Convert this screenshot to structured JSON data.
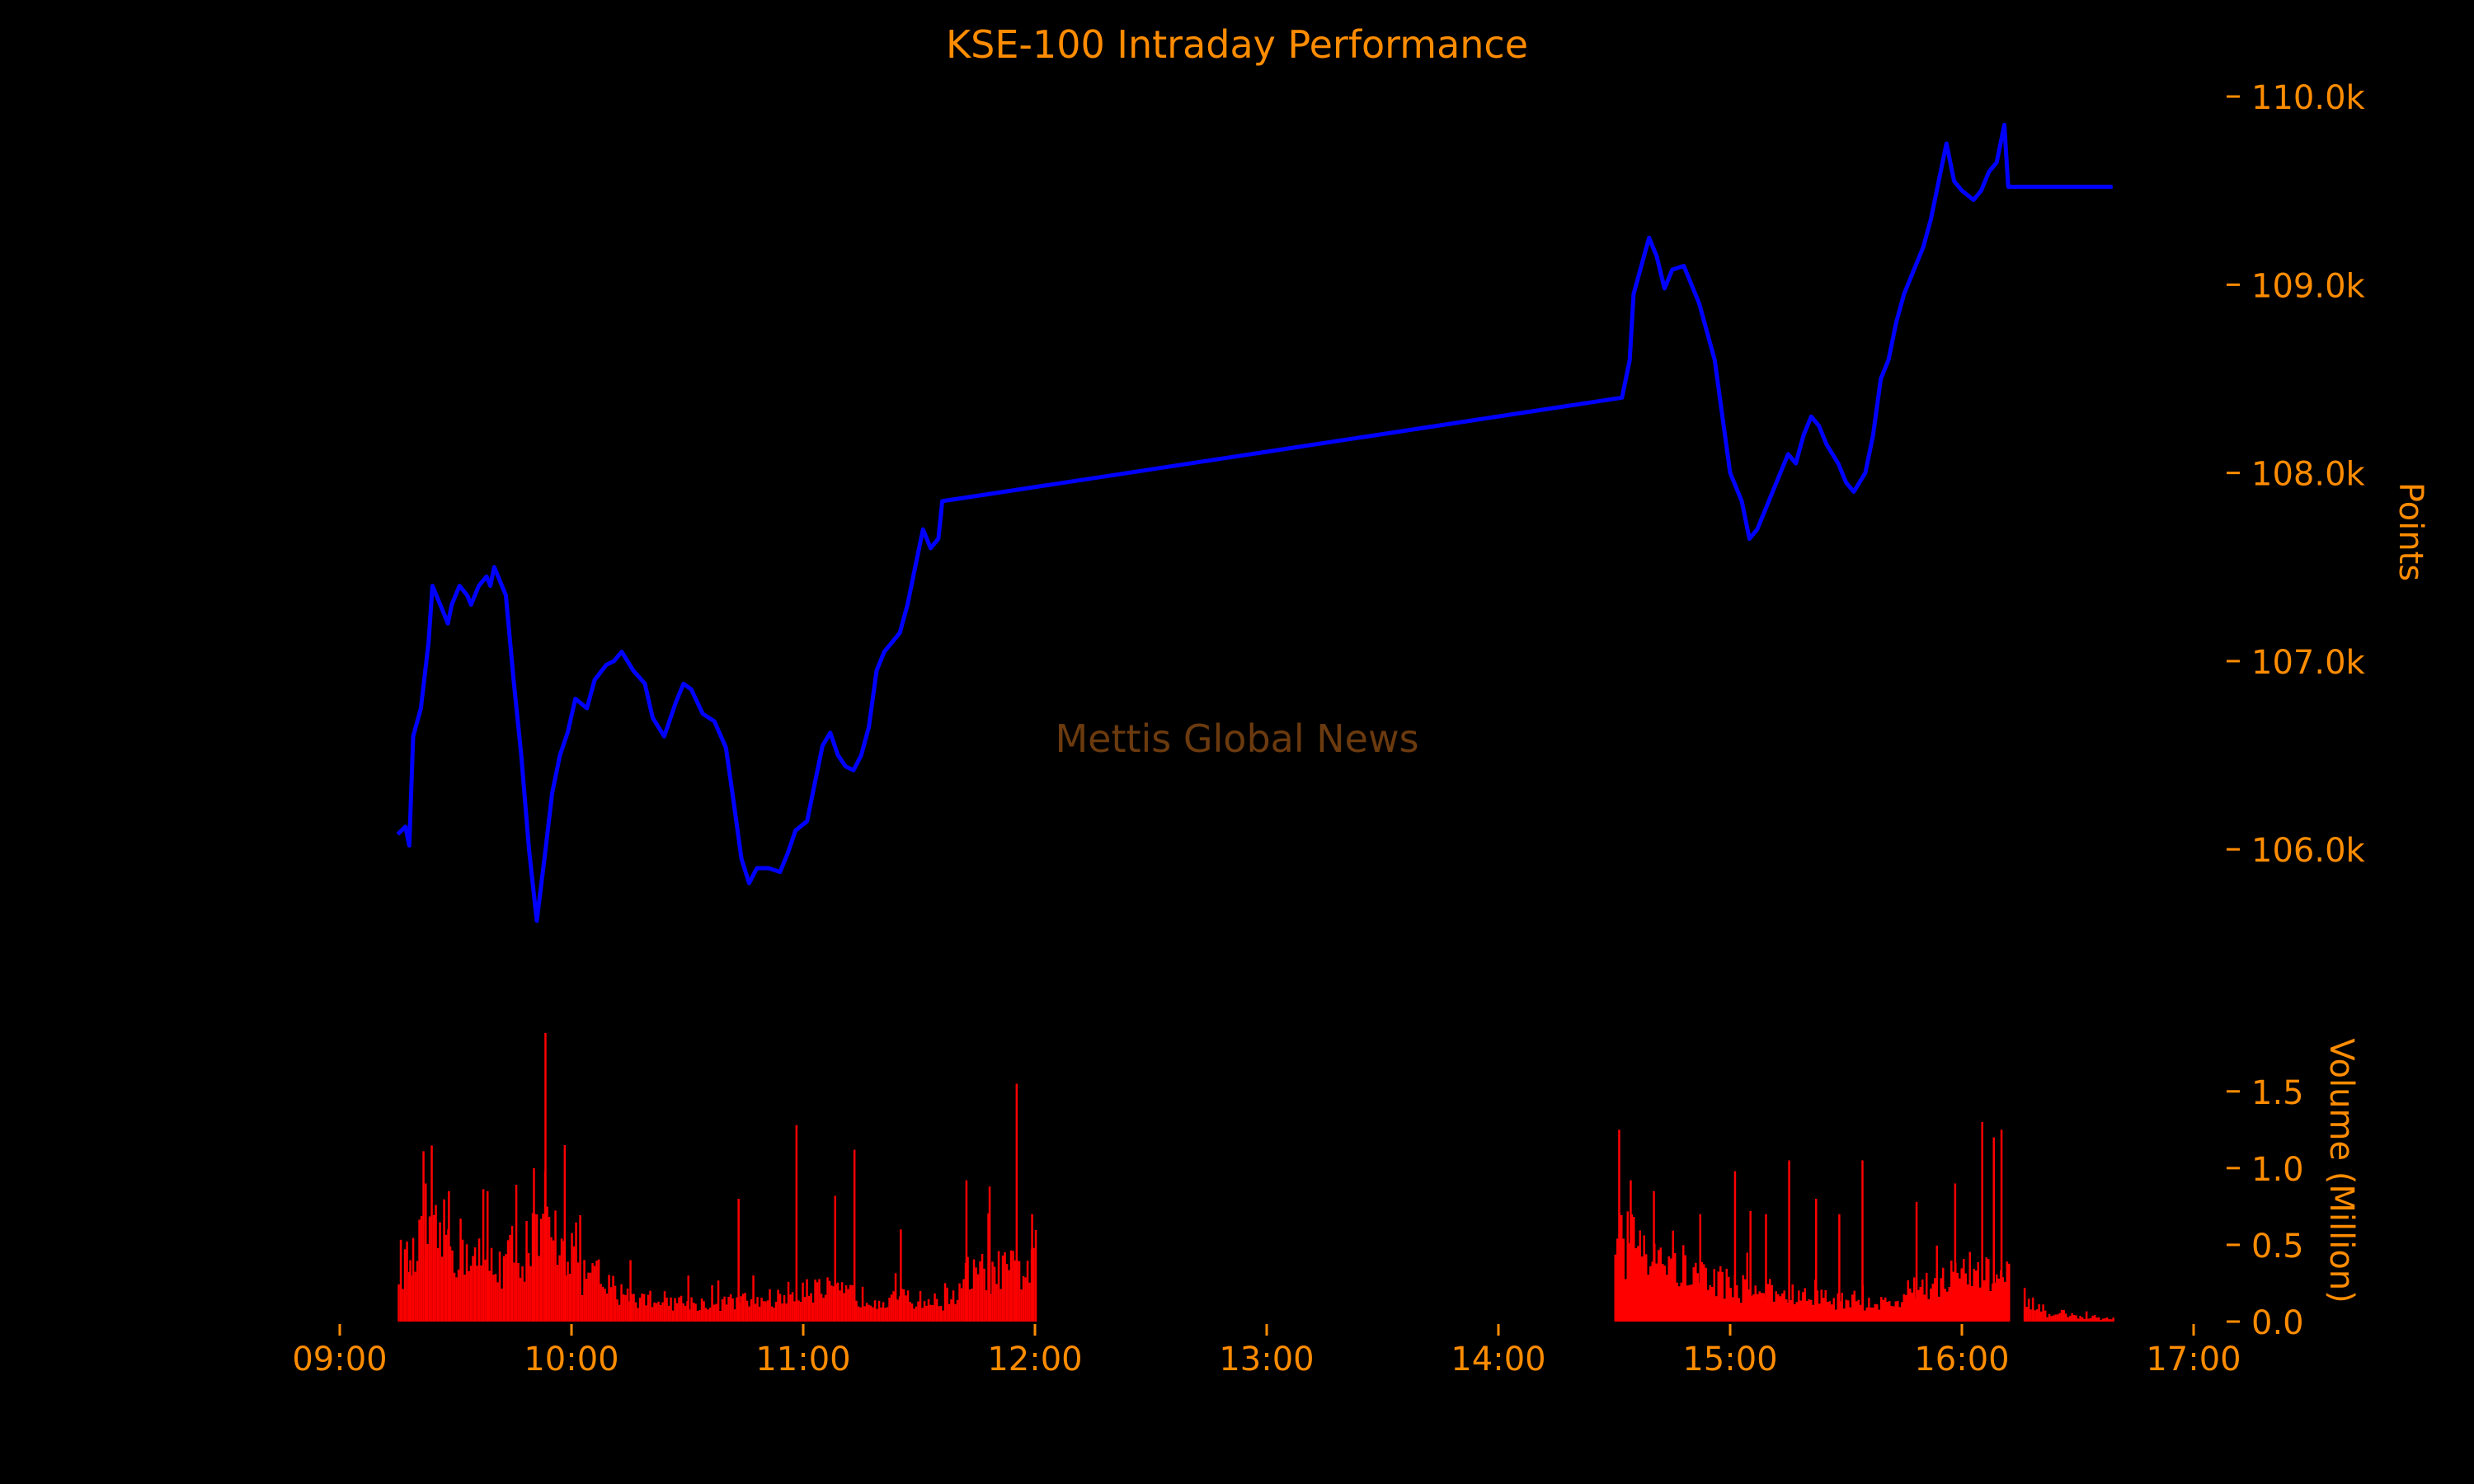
{
  "colors": {
    "background": "#000000",
    "text": "#ff8c00",
    "price_line": "#0000ff",
    "volume_bars": "#ff0000",
    "watermark": "#6b3a0e"
  },
  "chart_data": {
    "title": "KSE-100 Intraday Performance",
    "watermark": "Mettis Global News",
    "x_axis": {
      "type": "time",
      "range": [
        "09:00",
        "17:00"
      ],
      "ticks": [
        "09:00",
        "10:00",
        "11:00",
        "12:00",
        "13:00",
        "14:00",
        "15:00",
        "16:00",
        "17:00"
      ]
    },
    "price_panel": {
      "type": "line",
      "ylabel": "Points",
      "ylim": [
        105300,
        110250
      ],
      "yticks": [
        "106.0k",
        "107.0k",
        "108.0k",
        "109.0k",
        "110.0k"
      ],
      "ytick_values": [
        106000,
        107000,
        108000,
        109000,
        110000
      ],
      "axis_side": "right",
      "points": [
        [
          "09:15",
          106080
        ],
        [
          "09:17",
          106120
        ],
        [
          "09:18",
          106020
        ],
        [
          "09:19",
          106600
        ],
        [
          "09:21",
          106750
        ],
        [
          "09:23",
          107100
        ],
        [
          "09:24",
          107400
        ],
        [
          "09:25",
          107350
        ],
        [
          "09:27",
          107250
        ],
        [
          "09:28",
          107200
        ],
        [
          "09:29",
          107300
        ],
        [
          "09:31",
          107400
        ],
        [
          "09:33",
          107350
        ],
        [
          "09:34",
          107300
        ],
        [
          "09:36",
          107400
        ],
        [
          "09:38",
          107450
        ],
        [
          "09:39",
          107400
        ],
        [
          "09:40",
          107500
        ],
        [
          "09:41",
          107450
        ],
        [
          "09:43",
          107350
        ],
        [
          "09:45",
          106900
        ],
        [
          "09:47",
          106500
        ],
        [
          "09:49",
          106000
        ],
        [
          "09:51",
          105620
        ],
        [
          "09:53",
          105950
        ],
        [
          "09:55",
          106300
        ],
        [
          "09:57",
          106500
        ],
        [
          "09:59",
          106620
        ],
        [
          "10:01",
          106800
        ],
        [
          "10:04",
          106750
        ],
        [
          "10:06",
          106900
        ],
        [
          "10:09",
          106980
        ],
        [
          "10:11",
          107000
        ],
        [
          "10:13",
          107050
        ],
        [
          "10:16",
          106950
        ],
        [
          "10:19",
          106880
        ],
        [
          "10:21",
          106700
        ],
        [
          "10:24",
          106600
        ],
        [
          "10:27",
          106780
        ],
        [
          "10:29",
          106880
        ],
        [
          "10:31",
          106850
        ],
        [
          "10:34",
          106720
        ],
        [
          "10:37",
          106680
        ],
        [
          "10:40",
          106540
        ],
        [
          "10:42",
          106250
        ],
        [
          "10:44",
          105950
        ],
        [
          "10:46",
          105820
        ],
        [
          "10:48",
          105900
        ],
        [
          "10:51",
          105900
        ],
        [
          "10:54",
          105880
        ],
        [
          "10:56",
          105980
        ],
        [
          "10:58",
          106100
        ],
        [
          "11:01",
          106150
        ],
        [
          "11:03",
          106350
        ],
        [
          "11:05",
          106550
        ],
        [
          "11:07",
          106620
        ],
        [
          "11:09",
          106500
        ],
        [
          "11:11",
          106440
        ],
        [
          "11:13",
          106420
        ],
        [
          "11:15",
          106500
        ],
        [
          "11:17",
          106650
        ],
        [
          "11:19",
          106950
        ],
        [
          "11:21",
          107050
        ],
        [
          "11:23",
          107100
        ],
        [
          "11:25",
          107150
        ],
        [
          "11:27",
          107300
        ],
        [
          "11:29",
          107500
        ],
        [
          "11:31",
          107700
        ],
        [
          "11:33",
          107600
        ],
        [
          "11:35",
          107650
        ],
        [
          "11:36",
          107850
        ],
        [
          "14:32",
          108400
        ],
        [
          "14:34",
          108600
        ],
        [
          "14:35",
          108950
        ],
        [
          "14:37",
          109100
        ],
        [
          "14:39",
          109250
        ],
        [
          "14:41",
          109150
        ],
        [
          "14:43",
          108980
        ],
        [
          "14:45",
          109080
        ],
        [
          "14:48",
          109100
        ],
        [
          "14:50",
          109000
        ],
        [
          "14:52",
          108900
        ],
        [
          "14:54",
          108750
        ],
        [
          "14:56",
          108600
        ],
        [
          "14:58",
          108300
        ],
        [
          "15:00",
          108000
        ],
        [
          "15:03",
          107850
        ],
        [
          "15:05",
          107650
        ],
        [
          "15:07",
          107700
        ],
        [
          "15:09",
          107800
        ],
        [
          "15:11",
          107900
        ],
        [
          "15:13",
          108000
        ],
        [
          "15:15",
          108100
        ],
        [
          "15:17",
          108050
        ],
        [
          "15:19",
          108200
        ],
        [
          "15:21",
          108300
        ],
        [
          "15:23",
          108250
        ],
        [
          "15:25",
          108150
        ],
        [
          "15:28",
          108050
        ],
        [
          "15:30",
          107950
        ],
        [
          "15:32",
          107900
        ],
        [
          "15:35",
          108000
        ],
        [
          "15:37",
          108200
        ],
        [
          "15:39",
          108500
        ],
        [
          "15:41",
          108600
        ],
        [
          "15:43",
          108800
        ],
        [
          "15:45",
          108950
        ],
        [
          "15:48",
          109100
        ],
        [
          "15:50",
          109200
        ],
        [
          "15:52",
          109350
        ],
        [
          "15:54",
          109550
        ],
        [
          "15:56",
          109750
        ],
        [
          "15:58",
          109550
        ],
        [
          "16:00",
          109500
        ],
        [
          "16:03",
          109450
        ],
        [
          "16:05",
          109500
        ],
        [
          "16:07",
          109600
        ],
        [
          "16:09",
          109650
        ],
        [
          "16:11",
          109850
        ],
        [
          "16:12",
          109520
        ],
        [
          "16:39",
          109520
        ]
      ]
    },
    "volume_panel": {
      "type": "bar",
      "ylabel": "Volume (Million)",
      "ylim": [
        0,
        1.95
      ],
      "yticks": [
        "0.0",
        "0.5",
        "1.0",
        "1.5"
      ],
      "ytick_values": [
        0,
        0.5,
        1.0,
        1.5
      ],
      "axis_side": "right",
      "sessions": [
        {
          "start": "09:15",
          "end": "12:00",
          "profile": [
            0.38,
            0.5,
            0.55,
            0.48,
            0.4,
            0.38,
            0.45,
            0.52,
            0.55,
            0.48,
            0.3,
            0.22,
            0.18,
            0.15,
            0.14,
            0.13,
            0.12,
            0.12,
            0.13,
            0.14,
            0.15,
            0.18,
            0.22,
            0.2,
            0.18,
            0.16,
            0.15,
            0.15,
            0.14,
            0.13,
            0.18,
            0.3,
            0.32,
            0.33,
            0.34
          ],
          "spikes": [
            [
              "09:18",
              0.4
            ],
            [
              "09:22",
              0.9
            ],
            [
              "09:28",
              0.85
            ],
            [
              "09:38",
              0.85
            ],
            [
              "09:50",
              1.0
            ],
            [
              "09:53",
              1.88
            ],
            [
              "09:58",
              1.15
            ],
            [
              "10:15",
              0.4
            ],
            [
              "10:30",
              0.3
            ],
            [
              "10:43",
              0.8
            ],
            [
              "10:58",
              1.28
            ],
            [
              "11:08",
              0.82
            ],
            [
              "11:13",
              1.12
            ],
            [
              "11:25",
              0.6
            ],
            [
              "11:42",
              0.92
            ],
            [
              "11:48",
              0.88
            ],
            [
              "11:55",
              1.55
            ],
            [
              "11:59",
              0.7
            ]
          ]
        },
        {
          "start": "14:30",
          "end": "16:12",
          "profile": [
            0.5,
            0.55,
            0.5,
            0.42,
            0.35,
            0.3,
            0.28,
            0.25,
            0.22,
            0.2,
            0.18,
            0.17,
            0.16,
            0.15,
            0.14,
            0.14,
            0.13,
            0.12,
            0.12,
            0.2,
            0.25,
            0.28,
            0.3,
            0.32,
            0.3,
            0.28
          ],
          "spikes": [
            [
              "14:31",
              1.25
            ],
            [
              "14:34",
              0.92
            ],
            [
              "14:40",
              0.85
            ],
            [
              "14:52",
              0.7
            ],
            [
              "15:01",
              0.98
            ],
            [
              "15:05",
              0.72
            ],
            [
              "15:09",
              0.7
            ],
            [
              "15:15",
              1.05
            ],
            [
              "15:22",
              0.8
            ],
            [
              "15:28",
              0.7
            ],
            [
              "15:34",
              1.05
            ],
            [
              "15:48",
              0.78
            ],
            [
              "15:58",
              0.9
            ],
            [
              "16:05",
              1.3
            ],
            [
              "16:08",
              1.2
            ],
            [
              "16:10",
              1.25
            ]
          ]
        },
        {
          "start": "16:16",
          "end": "16:39",
          "profile": [
            0.08,
            0.05,
            0.04,
            0.03,
            0.02
          ],
          "spikes": [
            [
              "16:16",
              0.22
            ],
            [
              "16:20",
              0.06
            ]
          ]
        }
      ]
    }
  }
}
